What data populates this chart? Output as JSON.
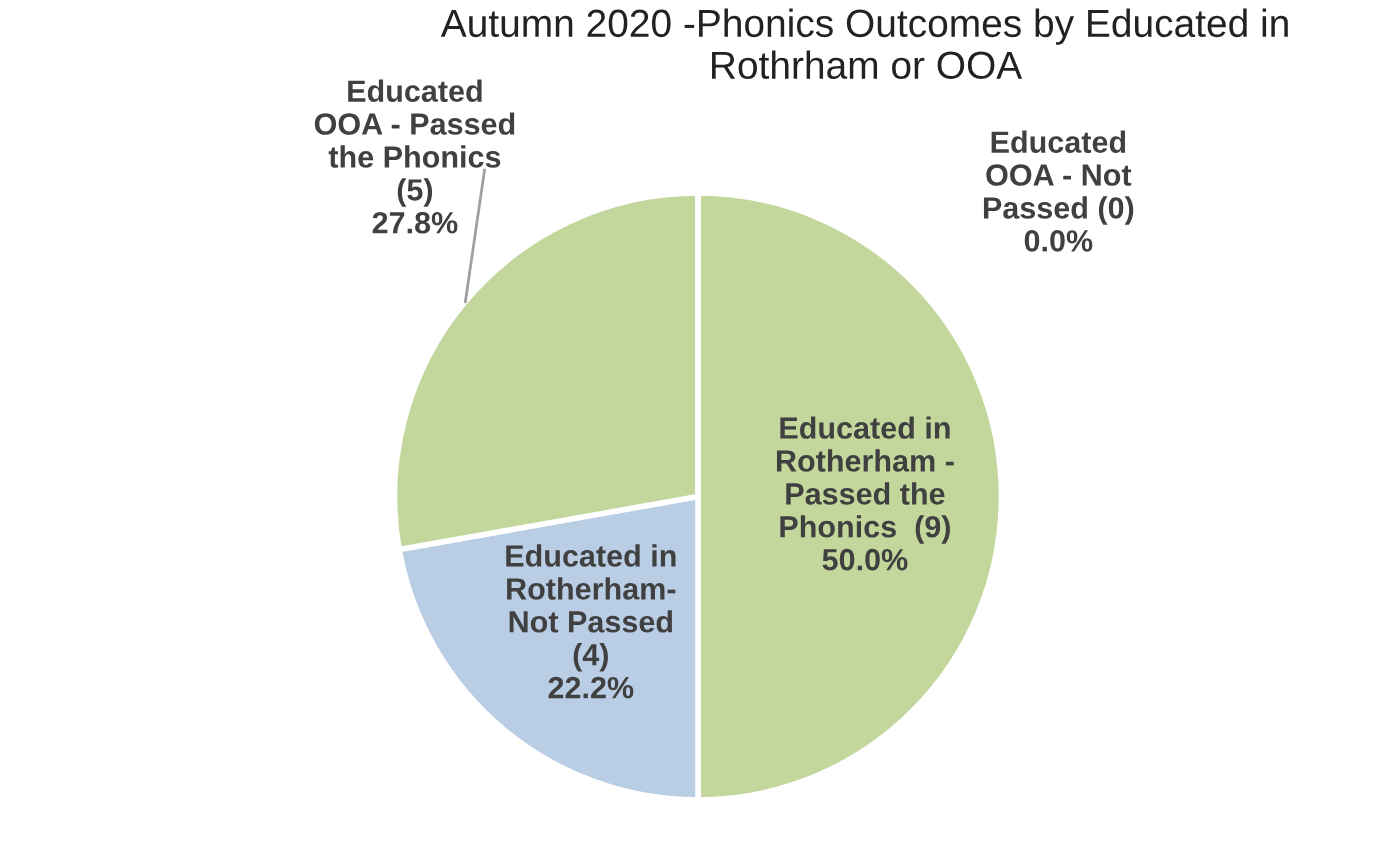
{
  "chart_data": {
    "type": "pie",
    "title": "Autumn 2020 -Phonics Outcomes by Educated in\nRothrham or OOA",
    "categories": [
      "Educated in\nRotherham -\nPassed the\nPhonics  (9)",
      "Educated in\nRotherham-\nNot Passed\n(4)",
      "Educated\nOOA - Passed\nthe Phonics\n(5)",
      "Educated\nOOA - Not\nPassed (0)"
    ],
    "values": [
      50.0,
      22.2,
      27.8,
      0.0
    ],
    "value_labels": [
      "50.0%",
      "22.2%",
      "27.8%",
      "0.0%"
    ],
    "colors": [
      "#c3d69b",
      "#b9cde5",
      "#c3d69b",
      "#c3d69b"
    ],
    "legend": false
  }
}
